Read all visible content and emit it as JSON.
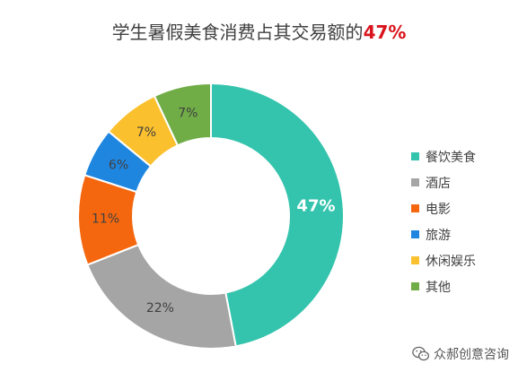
{
  "title": {
    "prefix": "学生暑假美食消费占其交易额的",
    "highlight": "47%"
  },
  "chart_data": {
    "type": "pie",
    "donut": true,
    "title": "学生暑假美食消费占其交易额的47%",
    "legend_position": "right",
    "categories": [
      "餐饮美食",
      "酒店",
      "电影",
      "旅游",
      "休闲娱乐",
      "其他"
    ],
    "values": [
      47,
      22,
      11,
      6,
      7,
      7
    ],
    "data_labels": [
      "47%",
      "22%",
      "11%",
      "6%",
      "7%",
      "7%"
    ],
    "colors": [
      "#34c4ad",
      "#a5a5a5",
      "#f5670f",
      "#1f86e0",
      "#fbc02d",
      "#70ad47"
    ],
    "label_colors": [
      "#ffffff",
      "#404040",
      "#404040",
      "#404040",
      "#404040",
      "#404040"
    ]
  },
  "watermark": {
    "text": "众郝创意咨询",
    "icon": "wechat-icon"
  }
}
